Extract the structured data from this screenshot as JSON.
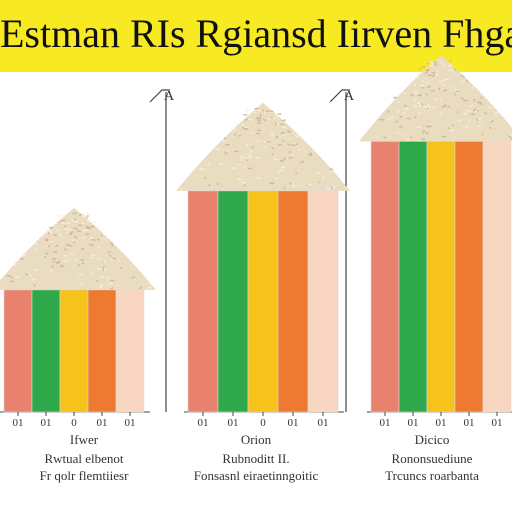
{
  "title": "Estman RIs Rgiansd Iirven Fhga",
  "colors": {
    "banner": "#f8ea22",
    "series": [
      "#e8826e",
      "#2ea84a",
      "#f6c21c",
      "#ee7a32",
      "#f8d6c2"
    ],
    "rice": "#e9dcc0",
    "rice_dark": "#cdb892",
    "axis": "#444444"
  },
  "chart_data": {
    "type": "bar",
    "title": "Estman RIs Rgiansd Iirven Fhga",
    "groups": [
      {
        "tick_labels": [
          "01",
          "01",
          "0",
          "01",
          "01"
        ],
        "caption": [
          "Ifwer",
          "Rwtual elbenot",
          "Fr qolr flemtiiesr"
        ],
        "values": [
          0.37,
          0.37,
          0.37,
          0.37,
          0.37
        ],
        "rice_pile": "small"
      },
      {
        "tick_labels": [
          "01",
          "01",
          "0",
          "01",
          "01"
        ],
        "caption": [
          "Orion",
          "Rubnoditt II.",
          "Fonsasnl eiraetinngoitic"
        ],
        "values": [
          0.67,
          0.67,
          0.67,
          0.67,
          0.67
        ],
        "rice_pile": "medium"
      },
      {
        "tick_labels": [
          "01",
          "01",
          "01",
          "01",
          "01"
        ],
        "caption": [
          "Dicico",
          "Rononsuediune",
          "Trcuncs roarbanta"
        ],
        "values": [
          0.82,
          0.82,
          0.82,
          0.82,
          0.82
        ],
        "rice_pile": "large"
      }
    ],
    "axis_labels": [
      "A",
      "A"
    ],
    "ylim": [
      0,
      1
    ]
  }
}
